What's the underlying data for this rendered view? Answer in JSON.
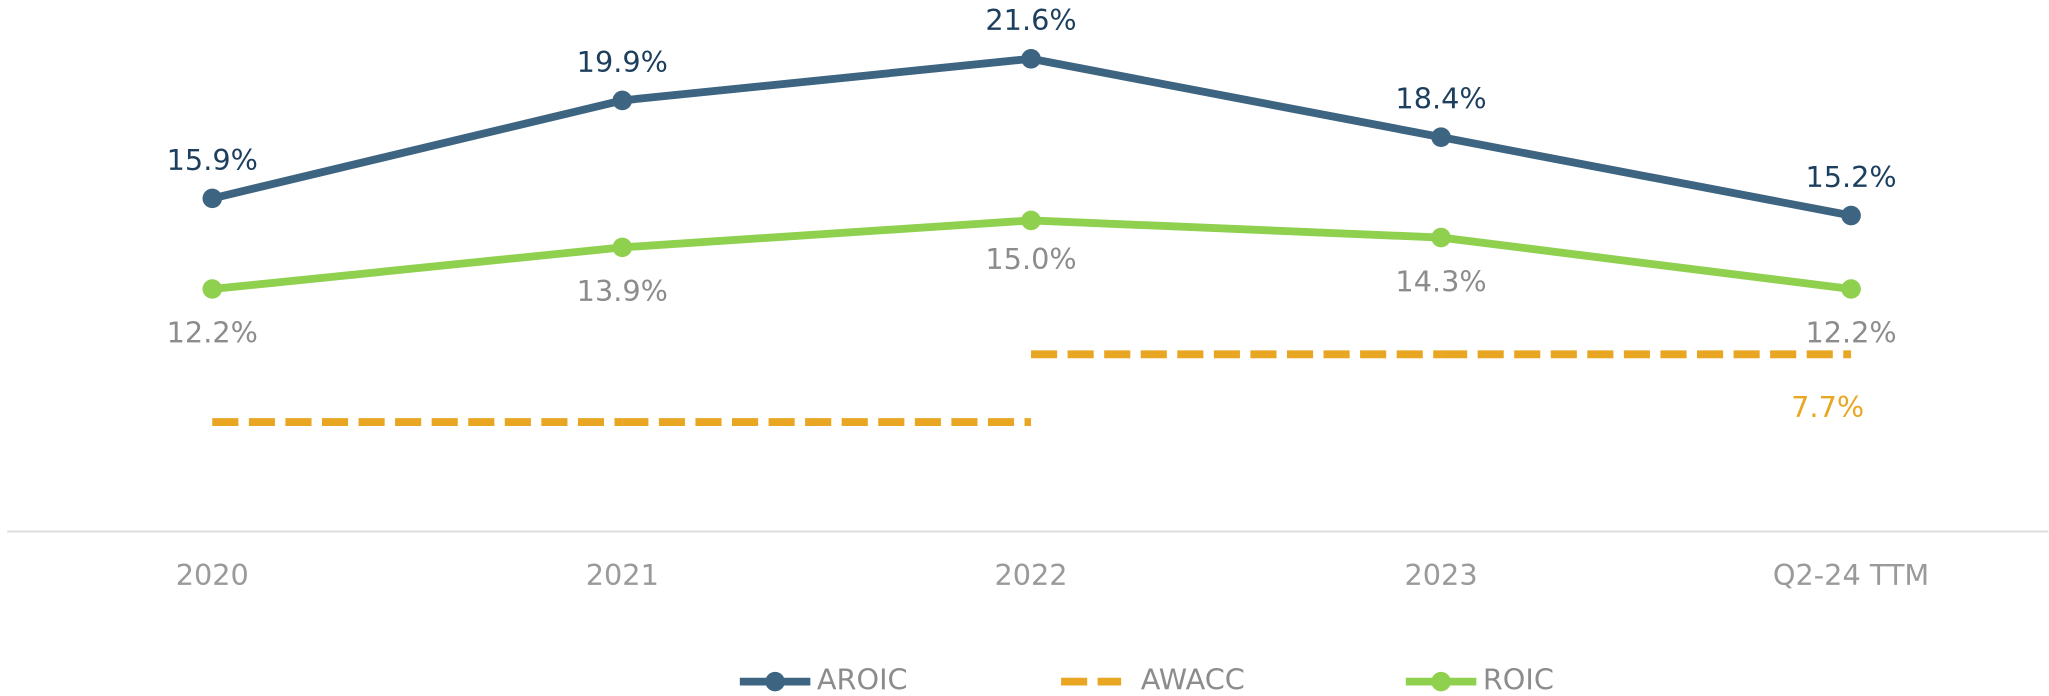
{
  "chart_data": {
    "type": "line",
    "categories": [
      "2020",
      "2021",
      "2022",
      "2023",
      "Q2-24 TTM"
    ],
    "ylim": [
      2.3,
      24
    ],
    "y2lim": [
      4.3,
      14.5
    ],
    "legend": "bottom",
    "series": [
      {
        "name": "AROIC",
        "color": "#3d6480",
        "values": [
          15.9,
          19.9,
          21.6,
          18.4,
          15.2
        ],
        "value_labels": [
          "15.9%",
          "19.9%",
          "21.6%",
          "18.4%",
          "15.2%"
        ]
      },
      {
        "name": "AWACC",
        "color": "#e8a623",
        "axis": "y2",
        "step": true,
        "dashed": true,
        "values": [
          6.4,
          6.4,
          7.7,
          7.7,
          7.7
        ],
        "value_labels": [
          null,
          null,
          null,
          null,
          "7.7%"
        ]
      },
      {
        "name": "ROIC",
        "color": "#8fd14f",
        "values": [
          12.2,
          13.9,
          15.0,
          14.3,
          12.2
        ],
        "value_labels": [
          "12.2%",
          "13.9%",
          "15.0%",
          "14.3%",
          "12.2%"
        ]
      }
    ]
  }
}
